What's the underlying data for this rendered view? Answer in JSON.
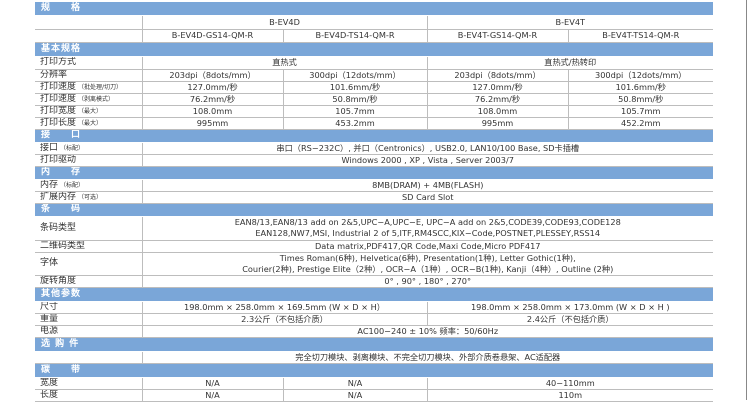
{
  "rows": [
    {
      "type": "section",
      "label": "规　　格",
      "h": 13
    },
    {
      "label": "",
      "h": 14,
      "cells": [
        {
          "text": "B-EV4D",
          "span": 2
        },
        {
          "text": "B-EV4T",
          "span": 2
        }
      ]
    },
    {
      "label": "",
      "h": 13,
      "cells": [
        {
          "text": "B-EV4D-GS14-QM-R"
        },
        {
          "text": "B-EV4D-TS14-QM-R"
        },
        {
          "text": "B-EV4T-GS14-QM-R"
        },
        {
          "text": "B-EV4T-TS14-QM-R"
        }
      ]
    },
    {
      "type": "section",
      "label": "基本规格",
      "h": 14
    },
    {
      "label": "打印方式",
      "h": 13,
      "cells": [
        {
          "text": "直热式",
          "span": 2
        },
        {
          "text": "直热式/热转印",
          "span": 2
        }
      ]
    },
    {
      "label": "分辨率",
      "h": 12,
      "cells": [
        {
          "text": "203dpi（8dots/mm）"
        },
        {
          "text": "300dpi（12dots/mm）"
        },
        {
          "text": "203dpi（8dots/mm）"
        },
        {
          "text": "300dpi（12dots/mm）"
        }
      ]
    },
    {
      "label": "打印速度",
      "note": "（批处理/切刀）",
      "h": 12,
      "cells": [
        {
          "text": "127.0mm/秒"
        },
        {
          "text": "101.6mm/秒"
        },
        {
          "text": "127.0mm/秒"
        },
        {
          "text": "101.6mm/秒"
        }
      ]
    },
    {
      "label": "打印速度",
      "note": "（剥离模式）",
      "h": 12,
      "cells": [
        {
          "text": "76.2mm/秒"
        },
        {
          "text": "50.8mm/秒"
        },
        {
          "text": "76.2mm/秒"
        },
        {
          "text": "50.8mm/秒"
        }
      ]
    },
    {
      "label": "打印宽度",
      "note": "（最大）",
      "h": 11,
      "cells": [
        {
          "text": "108.0mm"
        },
        {
          "text": "105.7mm"
        },
        {
          "text": "108.0mm"
        },
        {
          "text": "105.7mm"
        }
      ]
    },
    {
      "label": "打印长度",
      "note": "（最大）",
      "h": 12,
      "cells": [
        {
          "text": "995mm"
        },
        {
          "text": "453.2mm"
        },
        {
          "text": "995mm"
        },
        {
          "text": "452.2mm"
        }
      ]
    },
    {
      "type": "section",
      "label": "接　　口",
      "h": 13
    },
    {
      "label": "接口",
      "note": "（标配）",
      "h": 12,
      "cells": [
        {
          "text": "串口（RS−232C）, 并口（Centronics）, USB2.0, LAN10/100 Base, SD卡插槽",
          "span": 4
        }
      ]
    },
    {
      "label": "打印驱动",
      "h": 12,
      "cells": [
        {
          "text": "Windows 2000 , XP , Vista , Server 2003/7",
          "span": 4
        }
      ]
    },
    {
      "type": "section",
      "label": "内　　存",
      "h": 13
    },
    {
      "label": "内存",
      "note": "（标配）",
      "h": 12,
      "cells": [
        {
          "text": "8MB(DRAM) + 4MB(FLASH)",
          "span": 4
        }
      ]
    },
    {
      "label": "扩展内存",
      "note": "（可选）",
      "h": 11,
      "cells": [
        {
          "text": "SD Card Slot",
          "span": 4
        }
      ]
    },
    {
      "type": "section",
      "label": "条　　码",
      "h": 13
    },
    {
      "label": "条码类型",
      "h": 24,
      "cells": [
        {
          "lines": [
            "EAN8/13,EAN8/13 add on 2&5,UPC−A,UPC−E, UPC−A add on 2&5,CODE39,CODE93,CODE128",
            "EAN128,NW7,MSI, Industrial 2 of 5,ITF,RM4SCC,KIX−Code,POSTNET,PLESSEY,RSS14"
          ],
          "span": 4
        }
      ]
    },
    {
      "label": "二维码类型",
      "h": 12,
      "cells": [
        {
          "text": "Data matrix,PDF417,QR Code,Maxi Code,Micro PDF417",
          "span": 4
        }
      ]
    },
    {
      "label": "字体",
      "h": 23,
      "cells": [
        {
          "lines": [
            "Times Roman(6种), Helvetica(6种), Presentation(1种), Letter Gothic(1种),",
            "Courier(2种), Prestige Elite（2种）, OCR−A（1种）, OCR−B(1种), Kanji（4种）, Outline (2种)"
          ],
          "span": 4
        }
      ]
    },
    {
      "label": "旋转角度",
      "h": 12,
      "cells": [
        {
          "text": "0° , 90° , 180° , 270°",
          "span": 4
        }
      ]
    },
    {
      "type": "section",
      "label": "其他参数",
      "h": 14
    },
    {
      "label": "尺寸",
      "h": 12,
      "cells": [
        {
          "text": "198.0mm × 258.0mm × 169.5mm (W × D × H）",
          "span": 2
        },
        {
          "text": "198.0mm × 258.0mm × 173.0mm (W × D × H )",
          "span": 2
        }
      ]
    },
    {
      "label": "重量",
      "h": 12,
      "cells": [
        {
          "text": "2.3公斤（不包括介质）",
          "span": 2
        },
        {
          "text": "2.4公斤（不包括介质）",
          "span": 2
        }
      ]
    },
    {
      "label": "电源",
      "h": 11,
      "cells": [
        {
          "text": "AC100−240 ± 10%  频率：50/60Hz",
          "span": 4
        }
      ]
    },
    {
      "type": "section",
      "label": "选 购 件",
      "h": 14
    },
    {
      "label": "",
      "h": 12,
      "cells": [
        {
          "text": "完全切刀模块、剥离模块、不完全切刀模块、外部介质卷悬架、AC适配器",
          "span": 4
        }
      ]
    },
    {
      "type": "section",
      "label": "碳　　带",
      "h": 14
    },
    {
      "label": "宽度",
      "h": 12,
      "cells": [
        {
          "text": "N/A"
        },
        {
          "text": "N/A"
        },
        {
          "text": "40−110mm",
          "span": 2
        }
      ]
    },
    {
      "label": "长度",
      "h": 12,
      "cells": [
        {
          "text": "N/A"
        },
        {
          "text": "N/A"
        },
        {
          "text": "110m",
          "span": 2
        }
      ]
    }
  ],
  "colors": {
    "section_bg": "#7aa6d8",
    "section_text": "#ffffff",
    "grid": "#bdbdbd"
  }
}
